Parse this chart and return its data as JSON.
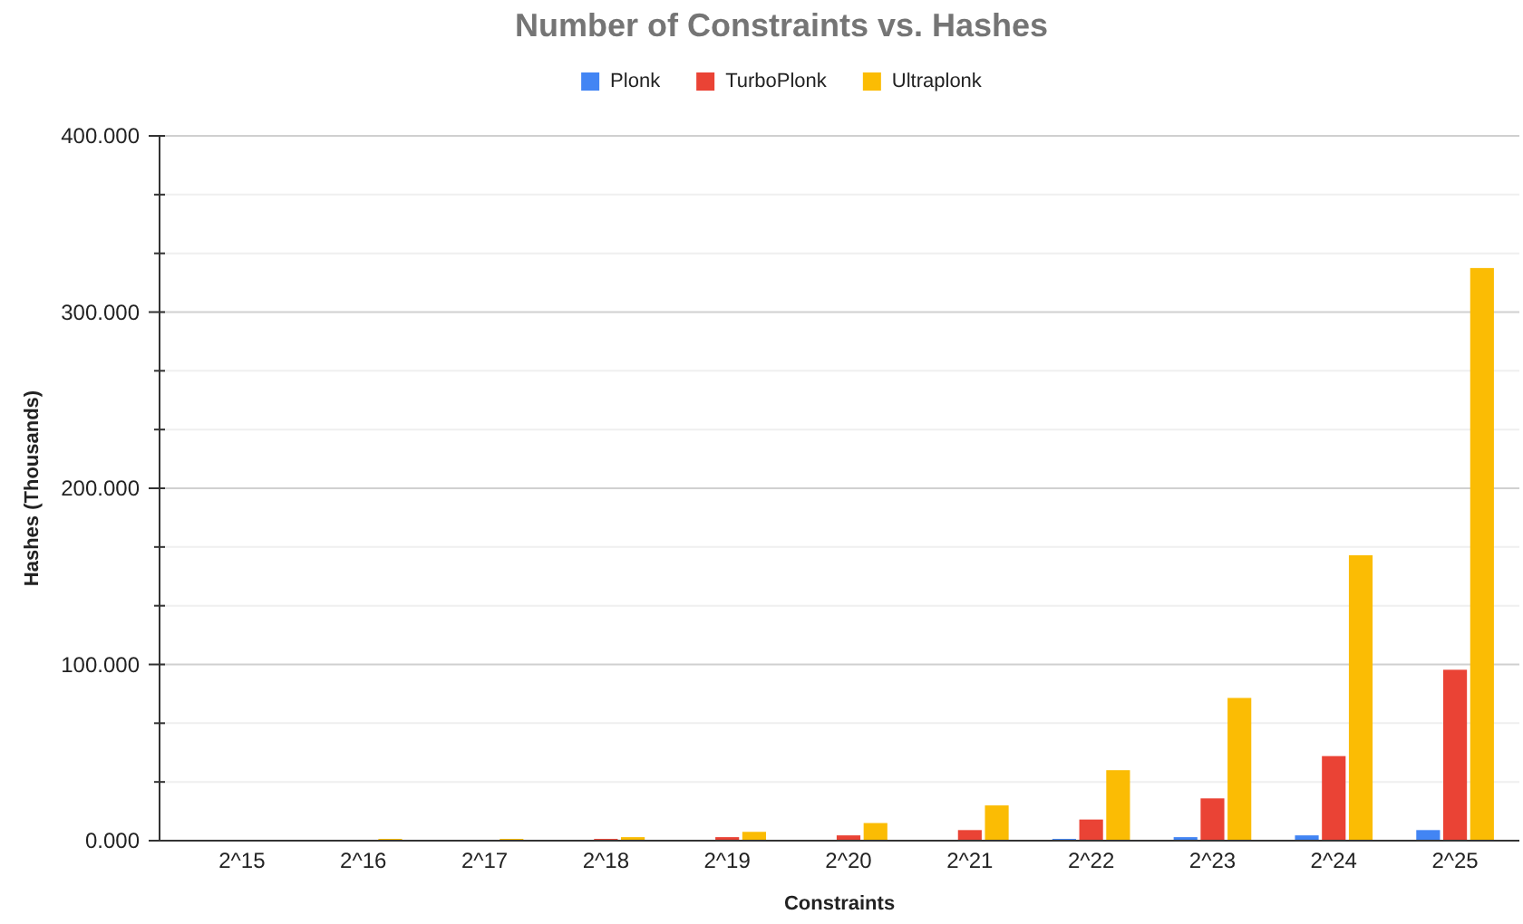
{
  "chart_data": {
    "type": "bar",
    "title": "Number of Constraints vs. Hashes",
    "xlabel": "Constraints",
    "ylabel": "Hashes (Thousands)",
    "categories": [
      "2^15",
      "2^16",
      "2^17",
      "2^18",
      "2^19",
      "2^20",
      "2^21",
      "2^22",
      "2^23",
      "2^24",
      "2^25"
    ],
    "series": [
      {
        "name": "Plonk",
        "color": "#4285f4",
        "values": [
          0,
          0,
          0,
          0,
          0,
          0,
          0,
          1,
          2,
          3,
          6
        ]
      },
      {
        "name": "TurboPlonk",
        "color": "#ea4335",
        "values": [
          0,
          0,
          0,
          1,
          2,
          3,
          6,
          12,
          24,
          48,
          97
        ]
      },
      {
        "name": "Ultraplonk",
        "color": "#fbbc04",
        "values": [
          0,
          1,
          1,
          2,
          5,
          10,
          20,
          40,
          81,
          162,
          325
        ]
      }
    ],
    "ylim": [
      0,
      400
    ],
    "yticks": [
      {
        "value": 0,
        "label": "0.000"
      },
      {
        "value": 33.33,
        "label": null
      },
      {
        "value": 66.67,
        "label": null
      },
      {
        "value": 100,
        "label": "100.000"
      },
      {
        "value": 133.33,
        "label": null
      },
      {
        "value": 166.67,
        "label": null
      },
      {
        "value": 200,
        "label": "200.000"
      },
      {
        "value": 233.33,
        "label": null
      },
      {
        "value": 266.67,
        "label": null
      },
      {
        "value": 300,
        "label": "300.000"
      },
      {
        "value": 333.33,
        "label": null
      },
      {
        "value": 366.67,
        "label": null
      },
      {
        "value": 400,
        "label": "400.000"
      }
    ],
    "grid": "y",
    "legend": "top"
  }
}
